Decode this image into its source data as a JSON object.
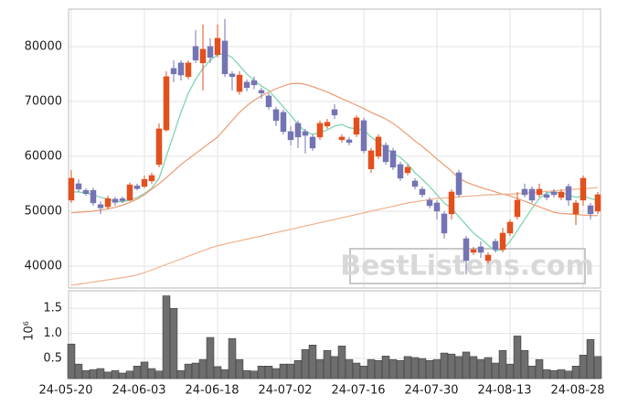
{
  "chart_data": [
    {
      "type": "candlestick",
      "up_color": "#e2501e",
      "down_color": "#7474b4",
      "open": [
        52000,
        55000,
        53800,
        53800,
        51200,
        50800,
        52200,
        52300,
        52000,
        54600,
        54500,
        55500,
        58500,
        64800,
        76000,
        77000,
        74500,
        80000,
        77000,
        80000,
        78500,
        81000,
        75000,
        71800,
        73500,
        73800,
        72000,
        71000,
        68500,
        68000,
        64500,
        66000,
        64500,
        63500,
        63500,
        65500,
        68500,
        63000,
        63000,
        64000,
        66500,
        57700,
        60000,
        62000,
        61000,
        58500,
        57000,
        55500,
        54000,
        52000,
        51500,
        49500,
        49500,
        57000,
        45000,
        42500,
        43500,
        41000,
        44500,
        43000,
        46000,
        49000,
        54000,
        54000,
        53000,
        53000,
        53500,
        52500,
        54500,
        49500,
        52000,
        51000,
        50000
      ],
      "high": [
        57500,
        55800,
        54200,
        54300,
        51800,
        52800,
        52600,
        52700,
        55200,
        55000,
        56500,
        57000,
        66000,
        75500,
        77500,
        77500,
        77500,
        83000,
        84000,
        81500,
        84000,
        85000,
        75500,
        75500,
        74000,
        74500,
        72500,
        71500,
        69000,
        68500,
        65500,
        66500,
        65000,
        64000,
        66500,
        66800,
        69500,
        64000,
        63500,
        67500,
        67000,
        61500,
        64000,
        62500,
        61500,
        59000,
        58500,
        56000,
        54500,
        52500,
        52000,
        50000,
        54000,
        57500,
        45500,
        43500,
        44500,
        42500,
        45000,
        47000,
        48500,
        53500,
        55000,
        54500,
        55000,
        53500,
        54000,
        54000,
        55000,
        52000,
        56500,
        51500,
        53500
      ],
      "low": [
        51500,
        53500,
        52800,
        51000,
        49500,
        50300,
        51000,
        51500,
        51800,
        53800,
        54200,
        55000,
        58000,
        64500,
        73500,
        73800,
        74000,
        77000,
        72000,
        77000,
        78000,
        74500,
        72000,
        71200,
        71800,
        72200,
        70500,
        68500,
        65500,
        64000,
        62000,
        61500,
        60500,
        61000,
        63000,
        65000,
        66800,
        62500,
        62000,
        63500,
        60500,
        57000,
        59500,
        58500,
        57500,
        55500,
        56500,
        54000,
        52500,
        50500,
        48500,
        45000,
        48500,
        52500,
        38500,
        42000,
        41500,
        40500,
        42500,
        42500,
        45500,
        48500,
        52500,
        51500,
        52500,
        52000,
        52500,
        52000,
        51000,
        47500,
        51000,
        48500,
        49500
      ],
      "close": [
        56000,
        54000,
        53200,
        51500,
        50600,
        52300,
        51600,
        51900,
        54800,
        54100,
        55800,
        56500,
        65000,
        74500,
        75000,
        74800,
        77000,
        77500,
        79500,
        78000,
        81500,
        75000,
        74500,
        74800,
        72500,
        73000,
        71500,
        69000,
        66500,
        64500,
        63000,
        63500,
        63800,
        61500,
        66000,
        66200,
        67500,
        63500,
        62500,
        67000,
        61000,
        61000,
        63500,
        59000,
        58000,
        56000,
        58000,
        54500,
        53000,
        51000,
        50000,
        46000,
        53500,
        53000,
        41000,
        43000,
        42500,
        42000,
        43000,
        46000,
        48000,
        52000,
        53000,
        52000,
        54000,
        52500,
        53000,
        53500,
        52000,
        51500,
        56000,
        49500,
        53000
      ],
      "moving_averages": [
        {
          "color": "#7fd6b0",
          "values": [
            53500,
            53500,
            53300,
            53000,
            52500,
            52200,
            51800,
            51700,
            52000,
            52500,
            53200,
            54200,
            56000,
            60000,
            64000,
            68000,
            71500,
            74000,
            76000,
            77500,
            78500,
            78700,
            78000,
            76500,
            75000,
            73800,
            72800,
            72000,
            70500,
            69000,
            67500,
            65800,
            64500,
            64000,
            64300,
            64800,
            65500,
            65800,
            65200,
            65000,
            64800,
            63500,
            62500,
            61500,
            60500,
            59800,
            58600,
            57000,
            55800,
            54500,
            53000,
            51500,
            50500,
            49000,
            47500,
            46000,
            45000,
            43800,
            42800,
            43000,
            44500,
            46500,
            48500,
            50500,
            52300,
            53300,
            53500,
            53300,
            53000,
            52500,
            52800,
            52300,
            52000
          ]
        },
        {
          "color": "#eea27c",
          "values": [
            49700,
            49800,
            49900,
            50000,
            50200,
            50400,
            50700,
            51100,
            51600,
            52200,
            53000,
            54000,
            55000,
            56100,
            57300,
            58500,
            59500,
            60500,
            61500,
            62500,
            63500,
            65000,
            66500,
            68000,
            69200,
            70200,
            71000,
            71700,
            72300,
            72800,
            73200,
            73300,
            73100,
            72700,
            72200,
            71700,
            71100,
            70500,
            69900,
            69300,
            68700,
            68000,
            67400,
            66800,
            66000,
            65000,
            63900,
            62800,
            61800,
            60700,
            59500,
            58400,
            57300,
            56000,
            55300,
            54800,
            54300,
            53900,
            53500,
            53100,
            52800,
            52300,
            51800,
            51300,
            50800,
            50300,
            49800,
            49600,
            49500,
            49400,
            49300,
            49200,
            49200
          ]
        },
        {
          "color": "#f2b692",
          "values": [
            36500,
            36700,
            36900,
            37100,
            37300,
            37500,
            37700,
            37900,
            38100,
            38400,
            38800,
            39300,
            39800,
            40300,
            40800,
            41300,
            41800,
            42300,
            42800,
            43300,
            43700,
            44000,
            44300,
            44600,
            44900,
            45200,
            45500,
            45800,
            46100,
            46400,
            46700,
            47000,
            47300,
            47600,
            47900,
            48200,
            48500,
            48800,
            49100,
            49400,
            49700,
            50000,
            50300,
            50600,
            50900,
            51200,
            51500,
            51700,
            51900,
            52100,
            52300,
            52400,
            52500,
            52600,
            52700,
            52800,
            52900,
            53000,
            53000,
            53100,
            53100,
            53200,
            53300,
            53400,
            53500,
            53600,
            53700,
            53800,
            53900,
            54000,
            54100,
            54200,
            54300
          ]
        }
      ],
      "ylim": [
        36000,
        86800
      ],
      "yticks": [
        40000,
        50000,
        60000,
        70000,
        80000
      ],
      "grid": true,
      "watermark": "BestListens.com"
    },
    {
      "type": "bar",
      "color": "#6e6e6e",
      "ylabel": "10⁶",
      "categories": [
        "24-05-20",
        null,
        null,
        null,
        null,
        null,
        null,
        null,
        null,
        null,
        "24-06-03",
        null,
        null,
        null,
        null,
        null,
        null,
        null,
        null,
        null,
        "24-06-18",
        null,
        null,
        null,
        null,
        null,
        null,
        null,
        null,
        null,
        "24-07-02",
        null,
        null,
        null,
        null,
        null,
        null,
        null,
        null,
        null,
        "24-07-16",
        null,
        null,
        null,
        null,
        null,
        null,
        null,
        null,
        null,
        "24-07-30",
        null,
        null,
        null,
        null,
        null,
        null,
        null,
        null,
        null,
        "24-08-13",
        null,
        null,
        null,
        null,
        null,
        null,
        null,
        null,
        null,
        "24-08-28",
        null,
        null
      ],
      "values": [
        0.79,
        0.39,
        0.26,
        0.28,
        0.3,
        0.23,
        0.26,
        0.21,
        0.25,
        0.35,
        0.43,
        0.3,
        0.25,
        1.75,
        1.5,
        0.26,
        0.39,
        0.41,
        0.48,
        0.92,
        0.34,
        0.28,
        0.9,
        0.48,
        0.26,
        0.25,
        0.35,
        0.35,
        0.3,
        0.39,
        0.39,
        0.46,
        0.68,
        0.77,
        0.48,
        0.66,
        0.54,
        0.75,
        0.48,
        0.41,
        0.35,
        0.48,
        0.46,
        0.55,
        0.48,
        0.46,
        0.54,
        0.52,
        0.5,
        0.46,
        0.48,
        0.61,
        0.59,
        0.54,
        0.63,
        0.54,
        0.48,
        0.52,
        0.41,
        0.66,
        0.39,
        0.95,
        0.66,
        0.35,
        0.48,
        0.28,
        0.26,
        0.28,
        0.25,
        0.35,
        0.57,
        0.88,
        0.54
      ],
      "ylim": [
        0.1,
        1.85
      ],
      "yticks": [
        0.5,
        {
          "value": 1,
          "label": "1.0"
        },
        1.5
      ],
      "grid": true
    }
  ]
}
